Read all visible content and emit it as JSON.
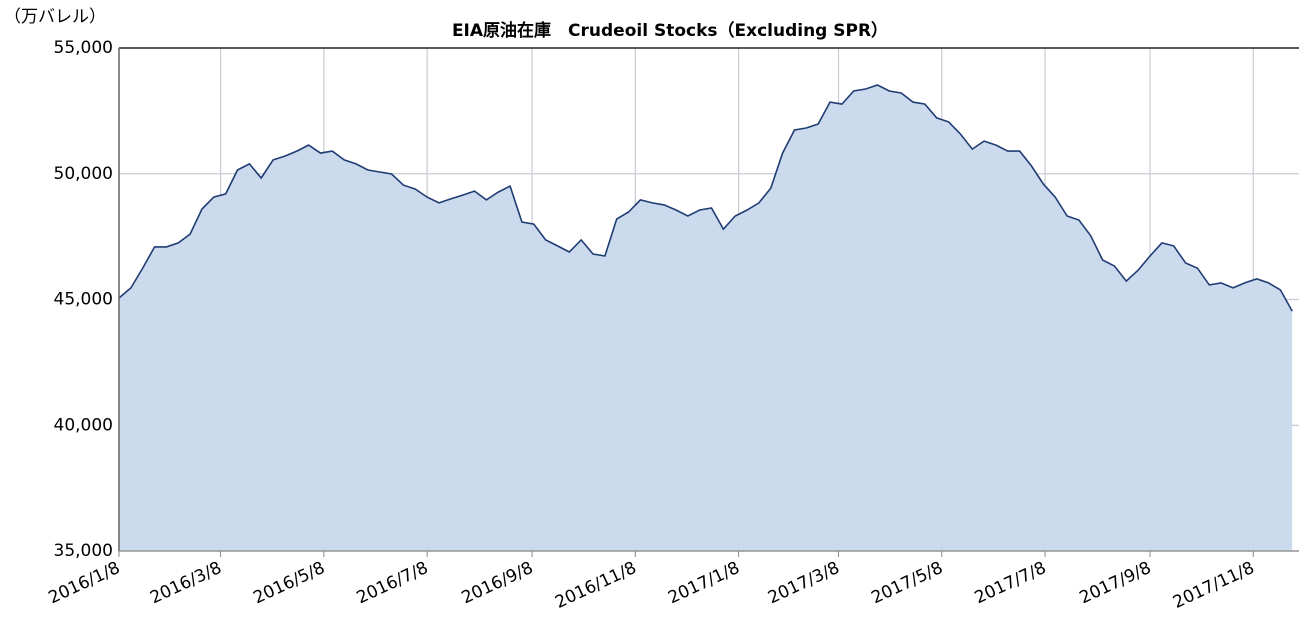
{
  "chart_data": {
    "type": "area",
    "title": "EIA原油在庫　Crudeoil Stocks（Excluding  SPR）",
    "y_label": "（万バレル）",
    "x": [
      "2016/1/8",
      "2016/1/15",
      "2016/1/22",
      "2016/1/29",
      "2016/2/5",
      "2016/2/12",
      "2016/2/19",
      "2016/2/26",
      "2016/3/4",
      "2016/3/11",
      "2016/3/18",
      "2016/3/25",
      "2016/4/1",
      "2016/4/8",
      "2016/4/15",
      "2016/4/22",
      "2016/4/29",
      "2016/5/6",
      "2016/5/13",
      "2016/5/20",
      "2016/5/27",
      "2016/6/3",
      "2016/6/10",
      "2016/6/17",
      "2016/6/24",
      "2016/7/1",
      "2016/7/8",
      "2016/7/15",
      "2016/7/22",
      "2016/7/29",
      "2016/8/5",
      "2016/8/12",
      "2016/8/19",
      "2016/8/26",
      "2016/9/2",
      "2016/9/9",
      "2016/9/16",
      "2016/9/23",
      "2016/9/30",
      "2016/10/7",
      "2016/10/14",
      "2016/10/21",
      "2016/10/28",
      "2016/11/4",
      "2016/11/11",
      "2016/11/18",
      "2016/11/25",
      "2016/12/2",
      "2016/12/9",
      "2016/12/16",
      "2016/12/23",
      "2016/12/30",
      "2017/1/6",
      "2017/1/13",
      "2017/1/20",
      "2017/1/27",
      "2017/2/3",
      "2017/2/10",
      "2017/2/17",
      "2017/2/24",
      "2017/3/3",
      "2017/3/10",
      "2017/3/17",
      "2017/3/24",
      "2017/3/31",
      "2017/4/7",
      "2017/4/14",
      "2017/4/21",
      "2017/4/28",
      "2017/5/5",
      "2017/5/12",
      "2017/5/19",
      "2017/5/26",
      "2017/6/2",
      "2017/6/9",
      "2017/6/16",
      "2017/6/23",
      "2017/6/30",
      "2017/7/7",
      "2017/7/14",
      "2017/7/21",
      "2017/7/28",
      "2017/8/4",
      "2017/8/11",
      "2017/8/18",
      "2017/8/25",
      "2017/9/1",
      "2017/9/8",
      "2017/9/15",
      "2017/9/22",
      "2017/9/29",
      "2017/10/6",
      "2017/10/13",
      "2017/10/20",
      "2017/10/27",
      "2017/11/3",
      "2017/11/10",
      "2017/11/17",
      "2017/11/24",
      "2017/12/1"
    ],
    "series": [
      {
        "name": "Crudeoil Stocks",
        "color": "#1f3d73",
        "fill": "#c9d8ec",
        "values": [
          45060,
          45460,
          46250,
          47090,
          47090,
          47250,
          47600,
          48600,
          49070,
          49200,
          50150,
          50390,
          49830,
          50550,
          50700,
          50900,
          51140,
          50820,
          50900,
          50550,
          50390,
          50150,
          50070,
          49990,
          49550,
          49390,
          49070,
          48840,
          49000,
          49150,
          49310,
          48960,
          49270,
          49510,
          48080,
          48000,
          47370,
          47130,
          46890,
          47370,
          46810,
          46730,
          48200,
          48480,
          48960,
          48840,
          48760,
          48560,
          48320,
          48560,
          48640,
          47800,
          48320,
          48560,
          48840,
          49430,
          50820,
          51740,
          51820,
          51980,
          52850,
          52770,
          53290,
          53370,
          53530,
          53290,
          53210,
          52850,
          52770,
          52220,
          52060,
          51580,
          50980,
          51300,
          51140,
          50900,
          50900,
          50310,
          49590,
          49070,
          48320,
          48160,
          47530,
          46570,
          46330,
          45730,
          46170,
          46730,
          47250,
          47130,
          46450,
          46250,
          45580,
          45660,
          45460,
          45660,
          45820,
          45660,
          45380,
          44540
        ]
      }
    ],
    "xlim": [
      "2016/1/8",
      "2017/12/5"
    ],
    "xticks": [
      "2016/1/8",
      "2016/3/8",
      "2016/5/8",
      "2016/7/8",
      "2016/9/8",
      "2016/11/8",
      "2017/1/8",
      "2017/3/8",
      "2017/5/8",
      "2017/7/8",
      "2017/9/8",
      "2017/11/8"
    ],
    "ylim": [
      35000,
      55000
    ],
    "yticks": [
      {
        "value": 35000,
        "label": "35,000"
      },
      {
        "value": 40000,
        "label": "40,000"
      },
      {
        "value": 45000,
        "label": "45,000"
      },
      {
        "value": 50000,
        "label": "50,000"
      },
      {
        "value": 55000,
        "label": "55,000"
      }
    ],
    "grid": true
  }
}
